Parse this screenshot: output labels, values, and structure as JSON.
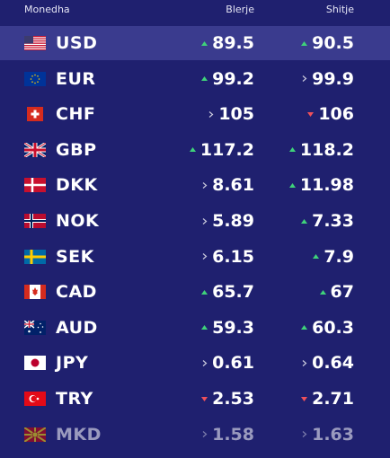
{
  "header": {
    "currency": "Monedha",
    "buy": "Blerje",
    "sell": "Shitje"
  },
  "rows": [
    {
      "code": "USD",
      "buy": "89.5",
      "buy_trend": "up",
      "sell": "90.5",
      "sell_trend": "up"
    },
    {
      "code": "EUR",
      "buy": "99.2",
      "buy_trend": "up",
      "sell": "99.9",
      "sell_trend": "flat"
    },
    {
      "code": "CHF",
      "buy": "105",
      "buy_trend": "flat",
      "sell": "106",
      "sell_trend": "down"
    },
    {
      "code": "GBP",
      "buy": "117.2",
      "buy_trend": "up",
      "sell": "118.2",
      "sell_trend": "up"
    },
    {
      "code": "DKK",
      "buy": "8.61",
      "buy_trend": "flat",
      "sell": "11.98",
      "sell_trend": "up"
    },
    {
      "code": "NOK",
      "buy": "5.89",
      "buy_trend": "flat",
      "sell": "7.33",
      "sell_trend": "up"
    },
    {
      "code": "SEK",
      "buy": "6.15",
      "buy_trend": "flat",
      "sell": "7.9",
      "sell_trend": "up"
    },
    {
      "code": "CAD",
      "buy": "65.7",
      "buy_trend": "up",
      "sell": "67",
      "sell_trend": "up"
    },
    {
      "code": "AUD",
      "buy": "59.3",
      "buy_trend": "up",
      "sell": "60.3",
      "sell_trend": "up"
    },
    {
      "code": "JPY",
      "buy": "0.61",
      "buy_trend": "flat",
      "sell": "0.64",
      "sell_trend": "flat"
    },
    {
      "code": "TRY",
      "buy": "2.53",
      "buy_trend": "down",
      "sell": "2.71",
      "sell_trend": "down"
    },
    {
      "code": "MKD",
      "buy": "1.58",
      "buy_trend": "flat",
      "sell": "1.63",
      "sell_trend": "flat"
    }
  ]
}
